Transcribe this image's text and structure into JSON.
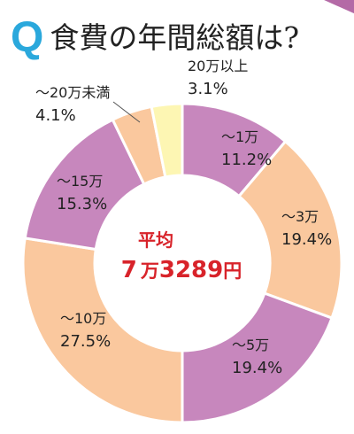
{
  "title": {
    "q_mark": "Q",
    "text": "食費の年間総額は?"
  },
  "chart_data": {
    "type": "pie",
    "donut": true,
    "categories": [
      "〜1万",
      "〜3万",
      "〜5万",
      "〜10万",
      "〜15万",
      "〜20万未満",
      "20万以上"
    ],
    "values": [
      11.2,
      19.4,
      19.4,
      27.5,
      15.3,
      4.1,
      3.1
    ],
    "value_labels": [
      "11.2%",
      "19.4%",
      "19.4%",
      "27.5%",
      "15.3%",
      "4.1%",
      "3.1%"
    ],
    "colors": [
      "#c787bd",
      "#fac89e",
      "#c787bd",
      "#fac89e",
      "#c787bd",
      "#fac89e",
      "#fdf6b3"
    ],
    "center_label": "平均",
    "center_value": "7万3289円",
    "center_value_parts": [
      "7",
      "万",
      "3289",
      "円"
    ]
  }
}
